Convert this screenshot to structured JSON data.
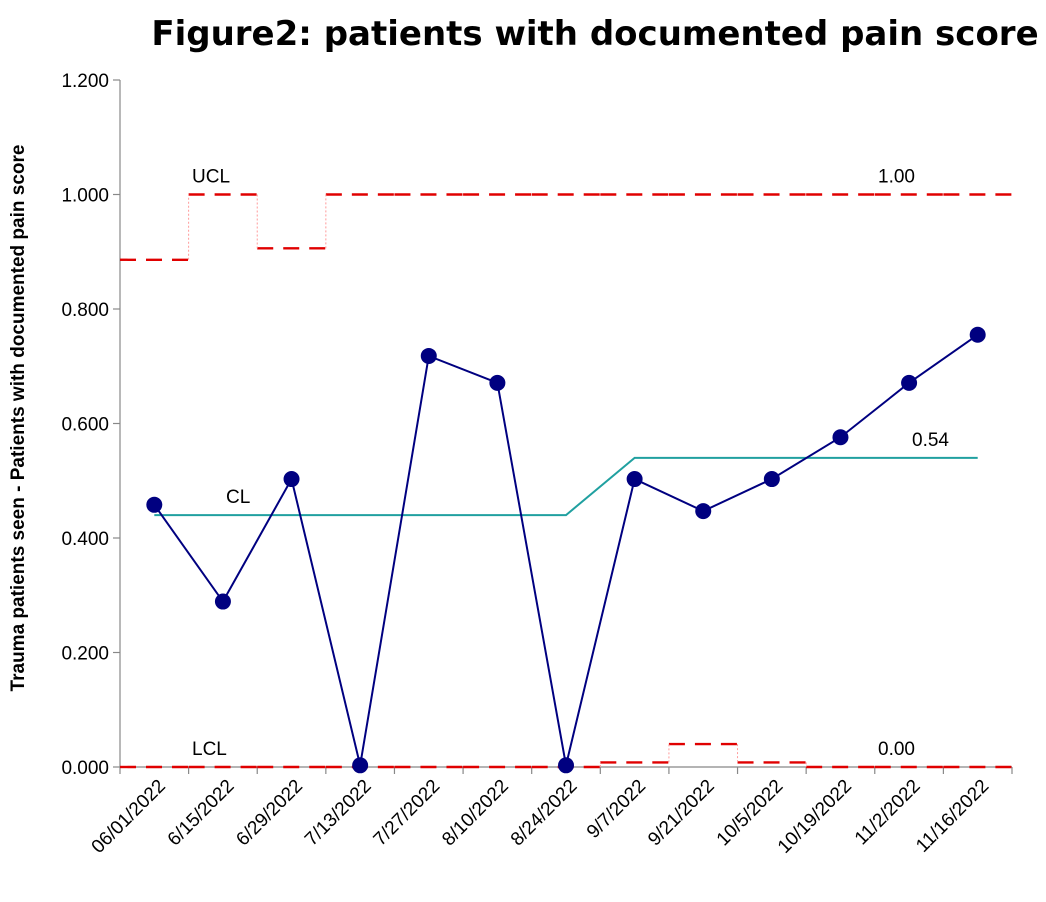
{
  "chart_data": {
    "type": "line",
    "title": "Figure2: patients with documented pain score",
    "ylabel": "Trauma patients seen  - Patients with documented pain score",
    "xlabel": "",
    "ylim": [
      0,
      1.2
    ],
    "yticks": [
      "0.000",
      "0.200",
      "0.400",
      "0.600",
      "0.800",
      "1.000",
      "1.200"
    ],
    "categories": [
      "06/01/2022",
      "6/15/2022",
      "6/29/2022",
      "7/13/2022",
      "7/27/2022",
      "8/10/2022",
      "8/24/2022",
      "9/7/2022",
      "9/21/2022",
      "10/5/2022",
      "10/19/2022",
      "11/2/2022",
      "11/16/2022"
    ],
    "grid": false,
    "series": [
      {
        "values": [
          0.458,
          0.289,
          0.503,
          0.003,
          0.718,
          0.671,
          0.003,
          0.503,
          0.447,
          0.503,
          0.576,
          0.671,
          0.755
        ],
        "color": "#000080",
        "marker": "circle"
      },
      {
        "name": "CL",
        "values": [
          0.44,
          0.44,
          0.44,
          0.44,
          0.44,
          0.44,
          0.44,
          0.54,
          0.54,
          0.54,
          0.54,
          0.54,
          0.54
        ],
        "color": "#20a0a0"
      },
      {
        "name": "UCL",
        "values": [
          0.886,
          1.0,
          0.906,
          1.0,
          1.0,
          1.0,
          1.0,
          1.0,
          1.0,
          1.0,
          1.0,
          1.0,
          1.0
        ],
        "color": "#e00000",
        "style": "dashed-step"
      },
      {
        "name": "LCL",
        "values": [
          0.0,
          0.0,
          0.0,
          0.0,
          0.0,
          0.0,
          0.0,
          0.008,
          0.04,
          0.008,
          0.0,
          0.0,
          0.0
        ],
        "color": "#e00000",
        "style": "dashed-step"
      }
    ],
    "annotations": {
      "ucl_label": "UCL",
      "cl_label": "CL",
      "lcl_label": "LCL",
      "ucl_value": "1.00",
      "cl_value": "0.54",
      "lcl_value": "0.00"
    }
  }
}
